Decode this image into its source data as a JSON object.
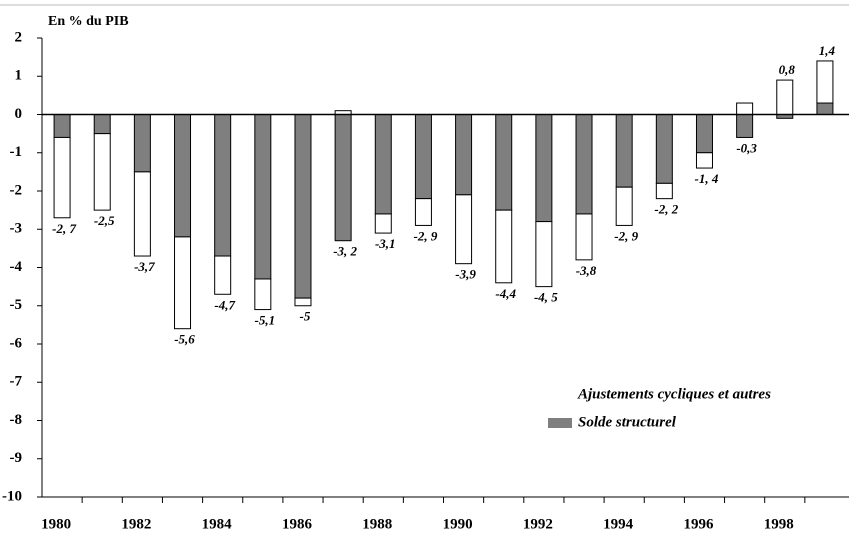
{
  "chart_data": {
    "type": "stacked_bar",
    "y_label": "En % du PIB",
    "categories": [
      "1980",
      null,
      "1982",
      null,
      "1984",
      null,
      "1986",
      null,
      "1988",
      null,
      "1990",
      null,
      "1992",
      null,
      "1994",
      null,
      "1996",
      null,
      "1998",
      null
    ],
    "series": [
      {
        "name": "Solde structurel",
        "color": "#7f7f7f",
        "values": [
          -0.6,
          -0.5,
          -1.5,
          -3.2,
          -3.7,
          -4.3,
          -4.8,
          -3.3,
          -2.6,
          -2.2,
          -2.1,
          -2.5,
          -2.8,
          -2.6,
          -1.9,
          -1.8,
          -1.0,
          -0.6,
          -0.1,
          0.3
        ]
      },
      {
        "name": "Ajustements cycliques et autres",
        "color": "#ffffff",
        "values": [
          -2.1,
          -2.0,
          -2.2,
          -2.4,
          -1.0,
          -0.8,
          -0.2,
          0.1,
          -0.5,
          -0.7,
          -1.8,
          -1.9,
          -1.7,
          -1.2,
          -1.0,
          -0.4,
          -0.4,
          0.3,
          0.9,
          1.1
        ]
      }
    ],
    "totals": [
      -2.7,
      -2.5,
      -3.7,
      -5.6,
      -4.7,
      -5.1,
      -5,
      -3.2,
      -3.1,
      -2.9,
      -3.9,
      -4.4,
      -4.5,
      -3.8,
      -2.9,
      -2.2,
      -1.4,
      -0.3,
      0.8,
      1.4
    ],
    "total_labels": [
      "-2, 7",
      "-2,5",
      "-3,7",
      "-5,6",
      "-4,7",
      "-5,1",
      "-5",
      "-3, 2",
      "-3,1",
      "-2, 9",
      "-3,9",
      "-4,4",
      "-4, 5",
      "-3,8",
      "-2, 9",
      "-2, 2",
      "-1, 4",
      "-0,3",
      "0,8",
      "1,4"
    ],
    "ylim": [
      -10,
      2
    ],
    "yticks": [
      -10,
      -9,
      -8,
      -7,
      -6,
      -5,
      -4,
      -3,
      -2,
      -1,
      0,
      1,
      2
    ]
  }
}
